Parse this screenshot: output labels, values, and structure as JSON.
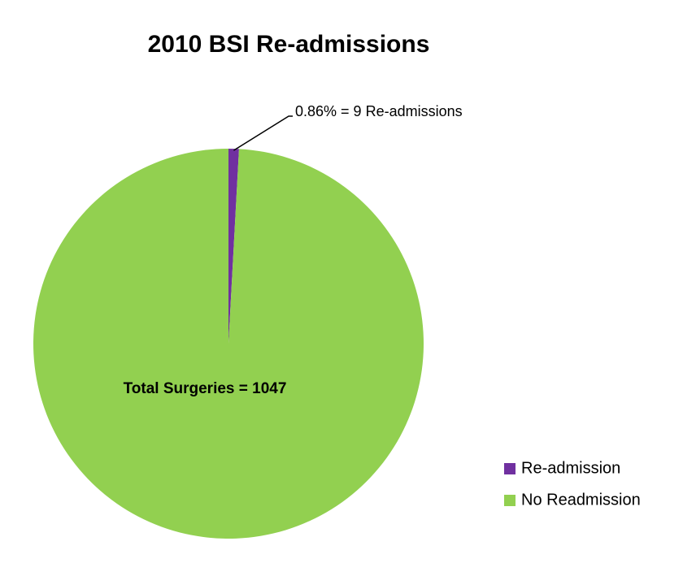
{
  "chart_data": {
    "type": "pie",
    "title": "2010 BSI Re-admissions",
    "categories": [
      "Re-admission",
      "No Readmission"
    ],
    "values": [
      0.86,
      99.14
    ],
    "value_labels": [
      "0.86% = 9 Re-admissions",
      null
    ],
    "colors": [
      "#7030a0",
      "#92d050"
    ],
    "annotation": "Total Surgeries = 1047",
    "legend": "right"
  }
}
